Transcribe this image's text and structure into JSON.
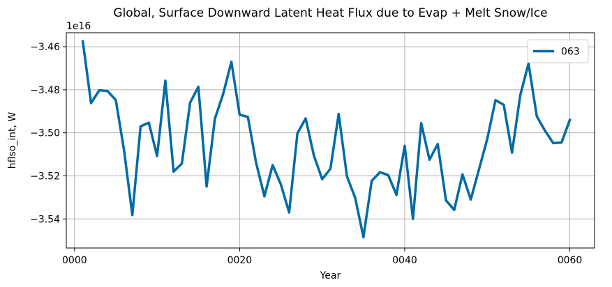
{
  "chart_data": {
    "type": "line",
    "title": "Global, Surface Downward Latent Heat Flux due to Evap + Melt Snow/Ice",
    "xlabel": "Year",
    "ylabel": "hflso_int, W",
    "y_offset_label": "1e16",
    "xlim": [
      -1,
      63
    ],
    "ylim": [
      -3.5535,
      -3.4535
    ],
    "x_ticks": [
      0,
      20,
      40,
      60
    ],
    "x_tick_labels": [
      "0000",
      "0020",
      "0040",
      "0060"
    ],
    "y_ticks": [
      -3.46,
      -3.48,
      -3.5,
      -3.52,
      -3.54
    ],
    "y_tick_labels": [
      "−3.46",
      "−3.48",
      "−3.50",
      "−3.52",
      "−3.54"
    ],
    "grid": true,
    "legend_position": "upper-right",
    "series": [
      {
        "name": "063",
        "color": "#006ba4",
        "x": [
          1,
          2,
          3,
          4,
          5,
          6,
          7,
          8,
          9,
          10,
          11,
          12,
          13,
          14,
          15,
          16,
          17,
          18,
          19,
          20,
          21,
          22,
          23,
          24,
          25,
          26,
          27,
          28,
          29,
          30,
          31,
          32,
          33,
          34,
          35,
          36,
          37,
          38,
          39,
          40,
          41,
          42,
          43,
          44,
          45,
          46,
          47,
          48,
          49,
          50,
          51,
          52,
          53,
          54,
          55,
          56,
          57,
          58,
          59,
          60
        ],
        "values": [
          -3.4575,
          -3.4862,
          -3.4802,
          -3.4806,
          -3.4848,
          -3.5082,
          -3.5382,
          -3.497,
          -3.4953,
          -3.5108,
          -3.4758,
          -3.518,
          -3.5143,
          -3.486,
          -3.4786,
          -3.5249,
          -3.4935,
          -3.482,
          -3.467,
          -3.4916,
          -3.4926,
          -3.514,
          -3.5295,
          -3.515,
          -3.524,
          -3.537,
          -3.5002,
          -3.4933,
          -3.5106,
          -3.5215,
          -3.5167,
          -3.4912,
          -3.5202,
          -3.5302,
          -3.5485,
          -3.5223,
          -3.5183,
          -3.5196,
          -3.5288,
          -3.506,
          -3.54,
          -3.4955,
          -3.5125,
          -3.5052,
          -3.5314,
          -3.5358,
          -3.5193,
          -3.531,
          -3.517,
          -3.5028,
          -3.4848,
          -3.487,
          -3.5092,
          -3.4825,
          -3.4678,
          -3.4923,
          -3.499,
          -3.5048,
          -3.5045,
          -3.494
        ]
      }
    ]
  }
}
